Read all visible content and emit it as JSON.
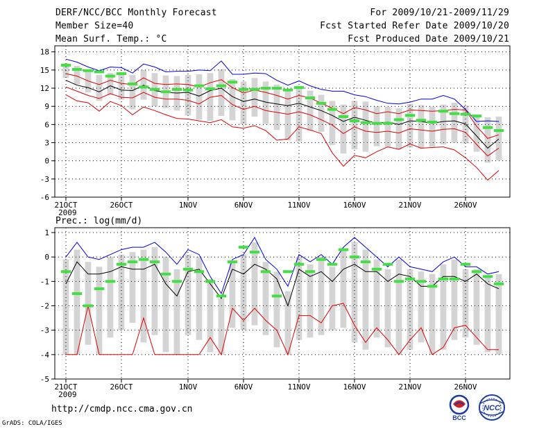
{
  "header": {
    "title": "DERF/NCC/BCC Monthly Forecast",
    "member_size": "Member Size=40",
    "variable": "Mean Surf. Temp.: °C",
    "period": "For 2009/10/21-2009/11/29",
    "fcst_started": "Fcst Started Refer Date 2009/10/20",
    "fcst_produced": "Fcst Produced Date 2009/10/21"
  },
  "footer": {
    "url": "http://cmdp.ncc.cma.gov.cn",
    "grads": "GrADS: COLA/IGES",
    "logo_bcc_text": "BCC",
    "logo_ncc_text": "NCC"
  },
  "colors": {
    "max_line": "#0000e0",
    "min_line": "#e00000",
    "mean_line": "#000000",
    "percentile_line": "#e00000",
    "observed_mark": "#44dd44",
    "spread_bar": "#d4d4d4",
    "grid": "#000000"
  },
  "chart_data": [
    {
      "type": "line",
      "title": "Mean Surf. Temp.: °C",
      "x_tick_labels": [
        "21OCT\n2009",
        "26OCT",
        "1NOV",
        "6NOV",
        "11NOV",
        "16NOV",
        "21NOV",
        "26NOV"
      ],
      "x_tick_days": [
        1,
        6,
        12,
        17,
        22,
        27,
        32,
        37
      ],
      "ylim": [
        -6,
        19
      ],
      "y_ticks": [
        -6,
        -3,
        0,
        3,
        6,
        9,
        12,
        15,
        18
      ],
      "days": 40,
      "series": [
        {
          "name": "ensemble max",
          "values": [
            16.8,
            16.3,
            15.5,
            14.9,
            15.5,
            15.4,
            14.5,
            16.0,
            15.5,
            14.7,
            14.8,
            14.8,
            15.0,
            14.9,
            16.5,
            14.3,
            14.3,
            14.5,
            14.4,
            13.3,
            12.5,
            13.2,
            12.4,
            11.8,
            11.5,
            11.5,
            10.9,
            10.6,
            10.0,
            9.5,
            9.4,
            9.7,
            10.2,
            10.2,
            10.8,
            10.2,
            8.5,
            6.5,
            6.6,
            6.5
          ]
        },
        {
          "name": "upper percentile",
          "values": [
            14.4,
            14.0,
            13.2,
            12.6,
            13.3,
            12.8,
            12.6,
            13.7,
            12.8,
            12.6,
            12.7,
            12.6,
            12.2,
            12.9,
            13.4,
            12.1,
            11.2,
            11.7,
            11.3,
            10.8,
            10.2,
            10.8,
            10.4,
            9.5,
            8.7,
            7.8,
            8.8,
            8.4,
            7.8,
            8.1,
            7.8,
            8.4,
            8.3,
            8.2,
            8.3,
            8.5,
            8.4,
            5.7,
            3.7,
            4.3
          ]
        },
        {
          "name": "ensemble mean",
          "values": [
            13.3,
            12.5,
            12.1,
            11.4,
            12.4,
            11.7,
            11.6,
            12.5,
            11.6,
            11.3,
            11.2,
            11.3,
            10.7,
            11.6,
            12.0,
            10.6,
            9.8,
            10.2,
            9.7,
            9.4,
            9.1,
            9.5,
            8.9,
            8.3,
            7.5,
            6.5,
            7.2,
            6.7,
            6.2,
            6.4,
            6.0,
            6.6,
            6.5,
            6.2,
            6.5,
            6.6,
            6.1,
            4.1,
            2.1,
            3.6
          ]
        },
        {
          "name": "lower percentile",
          "values": [
            12.2,
            11.5,
            10.8,
            10.3,
            11.1,
            10.5,
            10.4,
            11.3,
            10.5,
            10.2,
            10.2,
            10.0,
            9.4,
            10.5,
            10.8,
            9.3,
            8.5,
            9.0,
            8.3,
            8.0,
            7.7,
            8.1,
            7.6,
            6.8,
            5.9,
            4.5,
            5.6,
            4.9,
            4.7,
            4.9,
            4.6,
            5.3,
            5.1,
            4.9,
            5.2,
            5.3,
            4.7,
            2.7,
            0.8,
            2.1
          ]
        },
        {
          "name": "ensemble min",
          "values": [
            10.9,
            9.9,
            9.6,
            8.2,
            9.8,
            9.1,
            7.6,
            8.9,
            8.3,
            7.6,
            7.0,
            6.9,
            6.6,
            6.3,
            6.8,
            5.6,
            5.4,
            5.8,
            5.0,
            3.4,
            3.6,
            5.6,
            5.1,
            4.5,
            1.3,
            -0.9,
            0.9,
            0.5,
            1.5,
            2.3,
            1.9,
            2.8,
            2.1,
            2.2,
            2.3,
            1.8,
            0.5,
            -1.1,
            -3.2,
            -1.6
          ]
        },
        {
          "name": "observed",
          "values": [
            15.8,
            15.1,
            14.9,
            14.7,
            14.0,
            14.4,
            12.7,
            12.2,
            11.8,
            11.4,
            11.8,
            11.7,
            12.4,
            11.9,
            12.4,
            13.0,
            11.8,
            11.8,
            12.0,
            12.0,
            11.7,
            12.1,
            10.4,
            9.5,
            8.5,
            7.3,
            6.6,
            6.3,
            6.2,
            6.2,
            6.8,
            7.5,
            6.7,
            6.4,
            8.2,
            7.8,
            7.7,
            7.4,
            5.5,
            5.0
          ]
        }
      ],
      "spread_low": [
        13.7,
        12.6,
        11.3,
        9.9,
        10.9,
        10.1,
        8.5,
        10.1,
        9.0,
        8.7,
        8.3,
        7.5,
        6.8,
        6.6,
        7.4,
        6.7,
        6.0,
        7.3,
        6.1,
        5.1,
        3.4,
        3.2,
        4.9,
        4.8,
        2.6,
        1.2,
        1.9,
        1.5,
        2.4,
        2.2,
        1.9,
        2.2,
        2.0,
        2.3,
        2.7,
        3.0,
        2.9,
        1.5,
        -0.3,
        0.1
      ],
      "spread_high": [
        16.1,
        15.7,
        14.9,
        14.2,
        14.5,
        14.6,
        14.2,
        15.0,
        14.5,
        14.1,
        14.0,
        14.2,
        14.3,
        14.5,
        15.1,
        13.5,
        13.1,
        13.7,
        13.1,
        12.6,
        11.7,
        12.4,
        11.6,
        10.9,
        9.9,
        9.3,
        9.9,
        9.8,
        9.0,
        8.9,
        8.7,
        9.4,
        9.2,
        8.9,
        9.3,
        9.6,
        9.1,
        7.6,
        7.2,
        7.3
      ]
    },
    {
      "type": "line",
      "title": "Prec.: log(mm/d)",
      "x_tick_labels": [
        "21OCT\n2009",
        "26OCT",
        "1NOV",
        "6NOV",
        "11NOV",
        "16NOV",
        "21NOV",
        "26NOV"
      ],
      "x_tick_days": [
        1,
        6,
        12,
        17,
        22,
        27,
        32,
        37
      ],
      "ylim": [
        -5,
        1.2
      ],
      "y_ticks": [
        -5,
        -4,
        -3,
        -2,
        -1,
        0,
        1
      ],
      "days": 40,
      "series": [
        {
          "name": "ensemble max",
          "values": [
            0.0,
            0.6,
            0.0,
            -0.1,
            0.1,
            0.3,
            0.4,
            0.4,
            0.6,
            0.2,
            -0.3,
            0.3,
            0.1,
            -0.8,
            -1.5,
            -0.1,
            0.1,
            0.8,
            -0.1,
            -0.5,
            -1.2,
            0.1,
            -0.2,
            0.1,
            -0.3,
            0.4,
            0.8,
            0.4,
            0.0,
            -0.4,
            0.0,
            -0.4,
            -0.5,
            -0.6,
            -0.2,
            0.0,
            -0.4,
            -0.4,
            -0.7,
            -0.6
          ]
        },
        {
          "name": "ensemble mean",
          "values": [
            -1.1,
            -0.2,
            -0.7,
            -0.7,
            -0.6,
            -0.4,
            -0.5,
            -0.5,
            -0.3,
            -1.1,
            -1.6,
            -0.6,
            -0.5,
            -1.1,
            -1.7,
            -0.5,
            -0.7,
            -0.3,
            -0.5,
            -0.9,
            -2.0,
            -0.5,
            -0.8,
            -0.6,
            -1.0,
            -0.5,
            -0.3,
            -0.6,
            -0.6,
            -1.0,
            -0.7,
            -0.8,
            -1.2,
            -1.2,
            -0.8,
            -0.8,
            -1.0,
            -0.7,
            -1.1,
            -1.3
          ]
        },
        {
          "name": "low percentile",
          "values": [
            -4.0,
            -4.0,
            -2.0,
            -4.0,
            -4.0,
            -4.0,
            -4.0,
            -2.5,
            -4.0,
            -4.0,
            -4.0,
            -4.0,
            -4.0,
            -3.3,
            -4.0,
            -2.1,
            -2.6,
            -2.1,
            -2.6,
            -3.0,
            -4.0,
            -2.4,
            -2.4,
            -2.7,
            -2.0,
            -1.9,
            -2.8,
            -3.5,
            -2.9,
            -3.4,
            -4.0,
            -3.4,
            -2.9,
            -4.0,
            -3.7,
            -2.9,
            -2.8,
            -3.3,
            -3.8,
            -3.8
          ]
        },
        {
          "name": "observed",
          "values": [
            -0.6,
            -1.5,
            -2.0,
            -1.3,
            -1.0,
            -0.3,
            -0.2,
            -0.1,
            -0.2,
            -0.7,
            -1.0,
            -0.5,
            -0.6,
            -1.0,
            -1.6,
            -0.2,
            0.4,
            0.2,
            -0.6,
            -1.6,
            -0.6,
            -0.3,
            -0.6,
            -0.1,
            -0.3,
            0.3,
            0.0,
            -0.2,
            -0.5,
            -0.3,
            -1.0,
            -0.9,
            -1.0,
            -1.2,
            -0.9,
            -0.9,
            -0.3,
            -0.6,
            -0.8,
            -1.1
          ]
        }
      ],
      "spread_low": [
        -4.0,
        -4.0,
        -3.6,
        -4.0,
        -3.3,
        -3.0,
        -2.7,
        -3.5,
        -3.2,
        -3.9,
        -4.0,
        -3.2,
        -3.4,
        -3.9,
        -4.0,
        -2.9,
        -3.0,
        -2.8,
        -3.2,
        -3.7,
        -4.0,
        -3.4,
        -3.3,
        -3.2,
        -3.0,
        -2.9,
        -3.5,
        -3.8,
        -3.3,
        -3.7,
        -4.0,
        -3.8,
        -3.5,
        -4.0,
        -3.8,
        -3.4,
        -3.3,
        -3.6,
        -3.9,
        -4.0
      ],
      "spread_high": [
        -0.1,
        0.3,
        -0.2,
        -0.4,
        0.0,
        0.1,
        0.2,
        0.3,
        0.4,
        0.0,
        -0.5,
        0.1,
        0.0,
        -0.9,
        -1.7,
        -0.2,
        0.1,
        0.6,
        -0.2,
        -0.6,
        -1.4,
        0.0,
        -0.3,
        0.0,
        -0.4,
        0.3,
        0.6,
        0.3,
        -0.1,
        -0.5,
        -0.1,
        -0.5,
        -0.6,
        -0.7,
        -0.3,
        -0.1,
        -0.5,
        -0.5,
        -0.8,
        -0.7
      ]
    }
  ]
}
